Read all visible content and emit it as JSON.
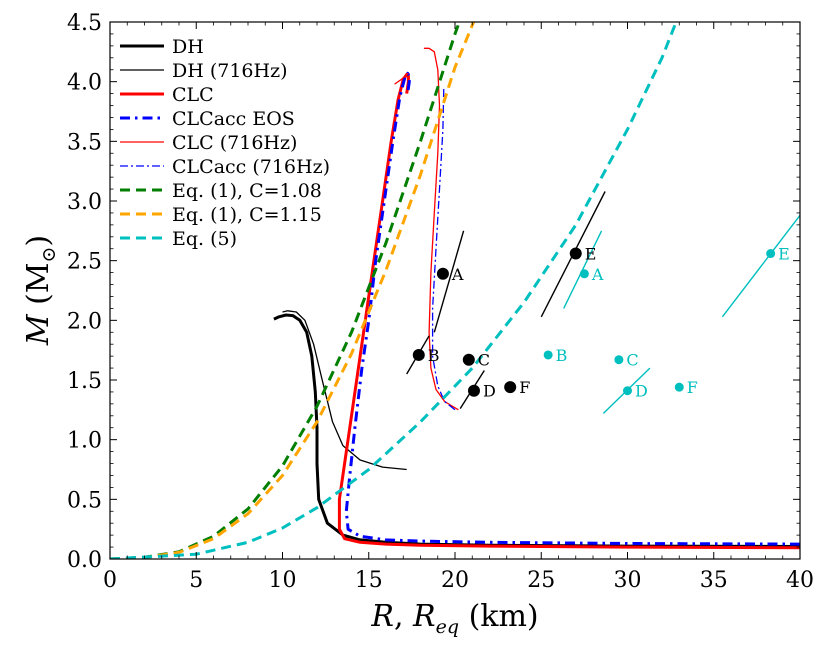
{
  "chart_data": {
    "type": "line",
    "xlabel_main": "R",
    "xlabel_sep": ", ",
    "xlabel_sub_base": "R",
    "xlabel_sub": "eq",
    "xlabel_unit": " (km)",
    "ylabel_main": "M",
    "ylabel_unit_open": " (M",
    "ylabel_unit_sub": "⊙",
    "ylabel_unit_close": ")",
    "xlim": [
      0,
      40
    ],
    "ylim": [
      0,
      4.5
    ],
    "xticks": [
      "0",
      "5",
      "10",
      "15",
      "20",
      "25",
      "30",
      "35",
      "40"
    ],
    "yticks": [
      "0.0",
      "0.5",
      "1.0",
      "1.5",
      "2.0",
      "2.5",
      "3.0",
      "3.5",
      "4.0",
      "4.5"
    ],
    "legend_position": "top-left",
    "series": [
      {
        "name": "DH",
        "color": "#000000",
        "dash": "solid",
        "width": 3,
        "points": [
          [
            40,
            0.105
          ],
          [
            30,
            0.108
          ],
          [
            22,
            0.115
          ],
          [
            18,
            0.125
          ],
          [
            16,
            0.14
          ],
          [
            14.5,
            0.16
          ],
          [
            13.5,
            0.2
          ],
          [
            12.6,
            0.3
          ],
          [
            12.1,
            0.5
          ],
          [
            12.0,
            0.8
          ],
          [
            12.0,
            1.1
          ],
          [
            11.9,
            1.4
          ],
          [
            11.7,
            1.7
          ],
          [
            11.4,
            1.9
          ],
          [
            11.0,
            2.0
          ],
          [
            10.6,
            2.04
          ],
          [
            10.2,
            2.045
          ],
          [
            9.8,
            2.03
          ],
          [
            9.5,
            2.01
          ]
        ]
      },
      {
        "name": "DH (716Hz)",
        "color": "#000000",
        "dash": "solid",
        "width": 1.3,
        "points": [
          [
            17.2,
            0.75
          ],
          [
            15.8,
            0.77
          ],
          [
            14.5,
            0.83
          ],
          [
            13.5,
            0.95
          ],
          [
            12.9,
            1.15
          ],
          [
            12.3,
            1.5
          ],
          [
            11.8,
            1.8
          ],
          [
            11.3,
            2.0
          ],
          [
            10.8,
            2.07
          ],
          [
            10.3,
            2.08
          ],
          [
            10.0,
            2.07
          ]
        ]
      },
      {
        "name": "CLC",
        "color": "#ff0000",
        "dash": "solid",
        "width": 3,
        "points": [
          [
            40,
            0.095
          ],
          [
            30,
            0.1
          ],
          [
            22,
            0.108
          ],
          [
            18,
            0.115
          ],
          [
            16,
            0.125
          ],
          [
            14.5,
            0.14
          ],
          [
            13.6,
            0.17
          ],
          [
            13.3,
            0.25
          ],
          [
            13.3,
            0.5
          ],
          [
            13.6,
            0.8
          ],
          [
            14.0,
            1.2
          ],
          [
            14.4,
            1.6
          ],
          [
            14.8,
            2.0
          ],
          [
            15.3,
            2.5
          ],
          [
            15.8,
            3.0
          ],
          [
            16.3,
            3.5
          ],
          [
            16.7,
            3.85
          ],
          [
            17.0,
            4.02
          ],
          [
            17.2,
            4.06
          ],
          [
            17.3,
            4.05
          ],
          [
            17.3,
            4.0
          ],
          [
            17.2,
            3.9
          ]
        ]
      },
      {
        "name": "CLCacc EOS",
        "color": "#0000ff",
        "dash": "10 5 2.5 5",
        "width": 3,
        "points": [
          [
            40,
            0.125
          ],
          [
            30,
            0.13
          ],
          [
            22,
            0.14
          ],
          [
            18,
            0.15
          ],
          [
            16,
            0.16
          ],
          [
            14.5,
            0.19
          ],
          [
            13.8,
            0.25
          ],
          [
            13.7,
            0.4
          ],
          [
            13.9,
            0.7
          ],
          [
            14.2,
            1.1
          ],
          [
            14.6,
            1.6
          ],
          [
            15.0,
            2.0
          ],
          [
            15.4,
            2.5
          ],
          [
            15.9,
            3.0
          ],
          [
            16.4,
            3.5
          ],
          [
            16.8,
            3.87
          ],
          [
            17.1,
            4.04
          ],
          [
            17.25,
            4.07
          ],
          [
            17.35,
            4.05
          ],
          [
            17.35,
            4.0
          ],
          [
            17.25,
            3.9
          ]
        ]
      },
      {
        "name": "CLC (716Hz)",
        "color": "#ff0000",
        "dash": "solid",
        "width": 1.3,
        "points": [
          [
            16.5,
            3.98
          ],
          [
            16.9,
            4.02
          ],
          [
            17.2,
            4.06
          ],
          [
            17.3,
            4.07
          ]
        ]
      },
      {
        "name": "CLC (716Hz)",
        "color": "#ff0000",
        "dash": "solid",
        "width": 1.3,
        "points": [
          [
            20.2,
            1.25
          ],
          [
            19.4,
            1.32
          ],
          [
            18.9,
            1.42
          ],
          [
            18.6,
            1.6
          ],
          [
            18.5,
            1.9
          ],
          [
            18.6,
            2.4
          ],
          [
            18.8,
            2.9
          ],
          [
            19.0,
            3.4
          ],
          [
            19.1,
            3.8
          ],
          [
            19.0,
            4.1
          ],
          [
            18.8,
            4.25
          ],
          [
            18.5,
            4.28
          ],
          [
            18.2,
            4.28
          ]
        ]
      },
      {
        "name": "CLCacc (716Hz)",
        "color": "#0000ff",
        "dash": "8 3 2 3",
        "width": 1.3,
        "points": [
          [
            20.0,
            1.25
          ],
          [
            19.4,
            1.32
          ],
          [
            19.0,
            1.45
          ],
          [
            18.7,
            1.7
          ],
          [
            18.7,
            2.1
          ],
          [
            18.9,
            2.6
          ],
          [
            19.1,
            3.1
          ],
          [
            19.3,
            3.6
          ],
          [
            19.35,
            3.95
          ]
        ]
      },
      {
        "name": "Eq. (1), C=1.08",
        "color": "#007f00",
        "dash": "10 6",
        "width": 3,
        "points": [
          [
            0,
            0
          ],
          [
            2,
            0.015
          ],
          [
            4,
            0.06
          ],
          [
            6,
            0.19
          ],
          [
            8,
            0.42
          ],
          [
            10,
            0.78
          ],
          [
            12,
            1.28
          ],
          [
            14,
            1.9
          ],
          [
            16,
            2.65
          ],
          [
            18,
            3.5
          ],
          [
            20,
            4.4
          ],
          [
            21.5,
            5.0
          ]
        ]
      },
      {
        "name": "Eq. (1), C=1.15",
        "color": "#ffa500",
        "dash": "10 6",
        "width": 3,
        "points": [
          [
            0,
            0
          ],
          [
            2,
            0.012
          ],
          [
            4,
            0.055
          ],
          [
            6,
            0.17
          ],
          [
            8,
            0.38
          ],
          [
            10,
            0.7
          ],
          [
            12,
            1.15
          ],
          [
            14,
            1.72
          ],
          [
            16,
            2.42
          ],
          [
            18,
            3.22
          ],
          [
            20,
            4.12
          ],
          [
            22.5,
            5.0
          ]
        ]
      },
      {
        "name": "Eq. (5)",
        "color": "#00bfbf",
        "dash": "10 6",
        "width": 3,
        "points": [
          [
            0,
            0
          ],
          [
            5,
            0.04
          ],
          [
            8,
            0.14
          ],
          [
            10,
            0.26
          ],
          [
            12,
            0.43
          ],
          [
            15,
            0.75
          ],
          [
            18,
            1.15
          ],
          [
            21,
            1.6
          ],
          [
            24,
            2.15
          ],
          [
            27,
            2.8
          ],
          [
            30,
            3.6
          ],
          [
            32,
            4.2
          ],
          [
            33.5,
            4.75
          ]
        ]
      }
    ],
    "segments": [
      {
        "color": "#000000",
        "points": [
          [
            18.8,
            1.9
          ],
          [
            20.5,
            2.75
          ]
        ]
      },
      {
        "color": "#000000",
        "points": [
          [
            17.2,
            1.55
          ],
          [
            18.5,
            1.87
          ]
        ]
      },
      {
        "color": "#000000",
        "points": [
          [
            20.3,
            1.26
          ],
          [
            21.7,
            1.58
          ]
        ]
      },
      {
        "color": "#000000",
        "points": [
          [
            25.0,
            2.03
          ],
          [
            28.7,
            3.08
          ]
        ]
      },
      {
        "color": "#00bfbf",
        "points": [
          [
            26.3,
            2.1
          ],
          [
            28.5,
            2.75
          ]
        ]
      },
      {
        "color": "#00bfbf",
        "points": [
          [
            28.6,
            1.22
          ],
          [
            31.3,
            1.6
          ]
        ]
      },
      {
        "color": "#00bfbf",
        "points": [
          [
            35.5,
            2.03
          ],
          [
            40.0,
            2.88
          ]
        ]
      }
    ],
    "points": [
      {
        "label": "A",
        "color": "#000000",
        "x": 19.3,
        "y": 2.39,
        "size": 6
      },
      {
        "label": "B",
        "color": "#000000",
        "x": 17.9,
        "y": 1.71,
        "size": 6
      },
      {
        "label": "C",
        "color": "#000000",
        "x": 20.8,
        "y": 1.67,
        "size": 6
      },
      {
        "label": "D",
        "color": "#000000",
        "x": 21.1,
        "y": 1.41,
        "size": 6
      },
      {
        "label": "E",
        "color": "#000000",
        "x": 27.0,
        "y": 2.56,
        "size": 6
      },
      {
        "label": "F",
        "color": "#000000",
        "x": 23.2,
        "y": 1.44,
        "size": 6
      },
      {
        "label": "A",
        "color": "#00bfbf",
        "x": 27.5,
        "y": 2.39,
        "size": 4.5
      },
      {
        "label": "B",
        "color": "#00bfbf",
        "x": 25.4,
        "y": 1.71,
        "size": 4.5
      },
      {
        "label": "C",
        "color": "#00bfbf",
        "x": 29.5,
        "y": 1.67,
        "size": 4.5
      },
      {
        "label": "D",
        "color": "#00bfbf",
        "x": 30.0,
        "y": 1.41,
        "size": 4.5
      },
      {
        "label": "E",
        "color": "#00bfbf",
        "x": 38.3,
        "y": 2.56,
        "size": 4.5
      },
      {
        "label": "F",
        "color": "#00bfbf",
        "x": 33.0,
        "y": 1.44,
        "size": 4.5
      }
    ]
  }
}
